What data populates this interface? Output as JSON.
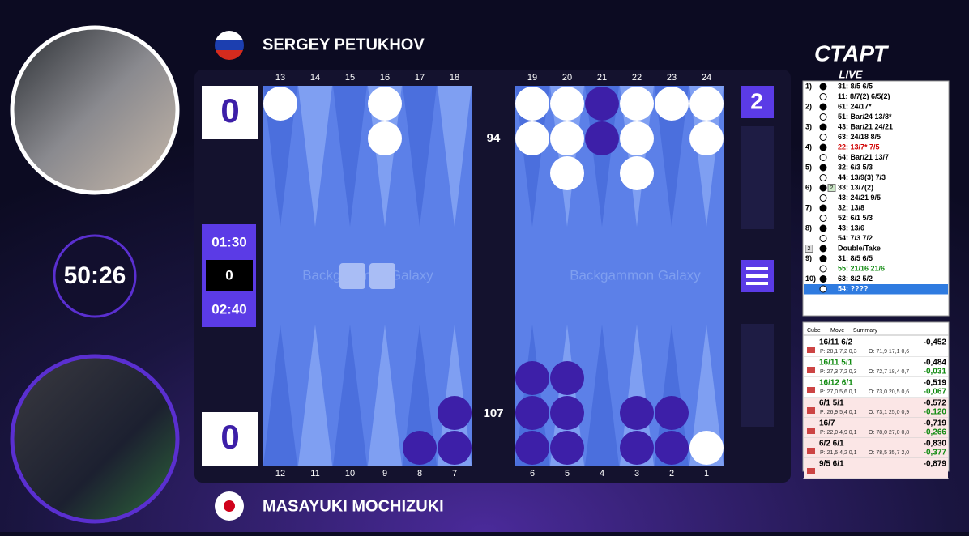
{
  "header": {
    "logo": "СТАРТ",
    "logo_sub": "LIVE"
  },
  "players": {
    "top": {
      "name": "SERGEY PETUKHOV",
      "score": "0",
      "timer": "01:30",
      "pips": "94"
    },
    "bottom": {
      "name": "MASAYUKI MOCHIZUKI",
      "score": "0",
      "timer": "02:40",
      "pips": "107"
    }
  },
  "match_clock": "50:26",
  "timer_middle": "0",
  "cube": "2",
  "watermark": "Backgammon Galaxy",
  "board": {
    "top": [
      {
        "label": "13",
        "count": 1,
        "color": "#ffffff"
      },
      {
        "label": "14",
        "count": 0
      },
      {
        "label": "15",
        "count": 0
      },
      {
        "label": "16",
        "count": 2,
        "color": "#ffffff"
      },
      {
        "label": "17",
        "count": 0
      },
      {
        "label": "18",
        "count": 0
      },
      {
        "label": "19",
        "count": 2,
        "color": "#ffffff"
      },
      {
        "label": "20",
        "count": 3,
        "color": "#ffffff"
      },
      {
        "label": "21",
        "count": 2,
        "color": "#3d1fa8"
      },
      {
        "label": "22",
        "count": 3,
        "color": "#ffffff"
      },
      {
        "label": "23",
        "count": 1,
        "color": "#ffffff"
      },
      {
        "label": "24",
        "count": 2,
        "color": "#ffffff"
      }
    ],
    "bottom": [
      {
        "label": "12",
        "count": 0
      },
      {
        "label": "11",
        "count": 0
      },
      {
        "label": "10",
        "count": 0
      },
      {
        "label": "9",
        "count": 0
      },
      {
        "label": "8",
        "count": 1,
        "color": "#3d1fa8"
      },
      {
        "label": "7",
        "count": 2,
        "color": "#3d1fa8"
      },
      {
        "label": "6",
        "count": 3,
        "color": "#3d1fa8"
      },
      {
        "label": "5",
        "count": 3,
        "color": "#3d1fa8"
      },
      {
        "label": "4",
        "count": 0
      },
      {
        "label": "3",
        "count": 2,
        "color": "#3d1fa8"
      },
      {
        "label": "2",
        "count": 2,
        "color": "#3d1fa8"
      },
      {
        "label": "1",
        "count": 1,
        "color": "#ffffff"
      }
    ]
  },
  "moves": [
    {
      "num": "1)",
      "side": "black",
      "text": "31: 8/5 6/5"
    },
    {
      "side": "white",
      "text": "11: 8/7(2) 6/5(2)"
    },
    {
      "num": "2)",
      "side": "black",
      "text": "61: 24/17*"
    },
    {
      "side": "white",
      "text": "51: Bar/24 13/8*"
    },
    {
      "num": "3)",
      "side": "black",
      "text": "43: Bar/21 24/21"
    },
    {
      "side": "white",
      "text": "63: 24/18 8/5"
    },
    {
      "num": "4)",
      "side": "black",
      "text": "22: 13/7* 7/5",
      "color": "#d00000"
    },
    {
      "side": "white",
      "text": "64: Bar/21 13/7"
    },
    {
      "num": "5)",
      "side": "black",
      "text": "32: 6/3 5/3"
    },
    {
      "side": "white",
      "text": "44: 13/9(3) 7/3"
    },
    {
      "num": "6)",
      "side": "black",
      "cube": "2",
      "text": "33: 13/7(2)"
    },
    {
      "side": "white",
      "text": "43: 24/21 9/5"
    },
    {
      "num": "7)",
      "side": "black",
      "text": "32: 13/8"
    },
    {
      "side": "white",
      "text": "52: 6/1 5/3"
    },
    {
      "num": "8)",
      "side": "black",
      "text": "43: 13/6"
    },
    {
      "side": "white",
      "text": "54: 7/3 7/2"
    },
    {
      "cube": "2",
      "side": "black",
      "text": "Double/Take"
    },
    {
      "num": "9)",
      "side": "black",
      "text": "31: 8/5 6/5"
    },
    {
      "side": "white",
      "text": "55: 21/16 21/6",
      "color": "#108a10"
    },
    {
      "num": "10)",
      "side": "black",
      "text": "63: 8/2 5/2"
    },
    {
      "side": "white",
      "text": "54: ????",
      "selected": true
    }
  ],
  "analysis": {
    "tabs": [
      "Cube",
      "Move",
      "Summary"
    ],
    "rows": [
      {
        "move": "16/11 6/2",
        "equity": "-0,452",
        "player": "P: 28,1 7,2 0,3",
        "opponent": "O: 71,9 17,1 0,6",
        "background": "#ffffff"
      },
      {
        "move": "16/11 5/1",
        "equity": "-0,484",
        "diff": "-0,031",
        "player": "P: 27,3 7,2 0,3",
        "opponent": "O: 72,7 18,4 0,7",
        "color": "#108a10",
        "background": "#ffffff"
      },
      {
        "move": "16/12 6/1",
        "equity": "-0,519",
        "diff": "-0,067",
        "player": "P: 27,0 5,6 0,1",
        "opponent": "O: 73,0 20,5 0,6",
        "color": "#108a10",
        "background": "#ffffff"
      },
      {
        "move": "6/1 5/1",
        "equity": "-0,572",
        "diff": "-0,120",
        "player": "P: 26,9 5,4 0,1",
        "opponent": "O: 73,1 25,0 0,9",
        "background": "#fbe6e6"
      },
      {
        "move": "16/7",
        "equity": "-0,719",
        "diff": "-0,266",
        "player": "P: 22,0 4,9 0,1",
        "opponent": "O: 78,0 27,0 0,8",
        "background": "#fbe6e6"
      },
      {
        "move": "6/2 6/1",
        "equity": "-0,830",
        "diff": "-0,377",
        "player": "P: 21,5 4,2 0,1",
        "opponent": "O: 78,5 35,7 2,0",
        "background": "#fbe6e6"
      },
      {
        "move": "9/5 6/1",
        "equity": "-0,879",
        "background": "#fbe6e6"
      }
    ]
  }
}
